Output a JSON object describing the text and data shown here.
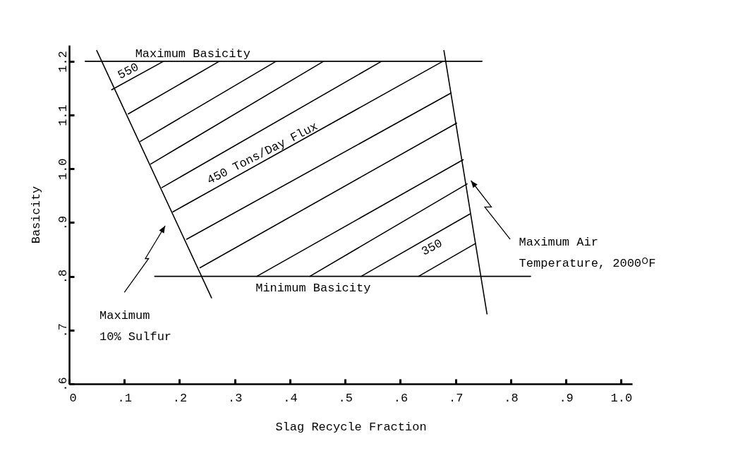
{
  "chart_data": {
    "type": "line",
    "xlabel": "Slag Recycle Fraction",
    "ylabel": "Basicity",
    "xlim": [
      0,
      1.02
    ],
    "ylim": [
      0.6,
      1.23
    ],
    "xticks": [
      0,
      {
        "value": 0.1,
        "label": ".1"
      },
      {
        "value": 0.2,
        "label": ".2"
      },
      {
        "value": 0.3,
        "label": ".3"
      },
      {
        "value": 0.4,
        "label": ".4"
      },
      {
        "value": 0.5,
        "label": ".5"
      },
      {
        "value": 0.6,
        "label": ".6"
      },
      {
        "value": 0.7,
        "label": ".7"
      },
      {
        "value": 0.8,
        "label": ".8"
      },
      {
        "value": 0.9,
        "label": ".9"
      },
      {
        "value": 1,
        "label": "1.0"
      }
    ],
    "yticks": [
      {
        "value": 0.6,
        "label": ".6"
      },
      {
        "value": 0.7,
        "label": ".7"
      },
      {
        "value": 0.8,
        "label": ".8"
      },
      {
        "value": 0.9,
        "label": ".9"
      },
      {
        "value": 1,
        "label": "1.0"
      },
      1.1,
      1.2
    ],
    "series": [
      {
        "color": "#000000",
        "x": [
          0.029,
          0.748
        ],
        "values": [
          1.2,
          1.2
        ]
      },
      {
        "color": "#000000",
        "x": [
          0.155,
          0.836
        ],
        "values": [
          0.8,
          0.8
        ]
      },
      {
        "color": "#000000",
        "x": [
          0.05,
          0.258
        ],
        "values": [
          1.22,
          0.76
        ]
      },
      {
        "color": "#000000",
        "x": [
          0.679,
          0.757
        ],
        "values": [
          1.22,
          0.73
        ]
      },
      {
        "color": "#000000",
        "x": [
          0.077,
          0.171
        ],
        "values": [
          1.147,
          1.2
        ]
      },
      {
        "color": "#000000",
        "x": [
          0.107,
          0.272
        ],
        "values": [
          1.102,
          1.2
        ]
      },
      {
        "color": "#000000",
        "x": [
          0.129,
          0.375
        ],
        "values": [
          1.051,
          1.2
        ]
      },
      {
        "color": "#000000",
        "x": [
          0.148,
          0.461
        ],
        "values": [
          1.009,
          1.2
        ]
      },
      {
        "color": "#000000",
        "x": [
          0.168,
          0.566
        ],
        "values": [
          0.965,
          1.2
        ]
      },
      {
        "color": "#000000",
        "x": [
          0.188,
          0.677
        ],
        "values": [
          0.92,
          1.2
        ]
      },
      {
        "color": "#000000",
        "x": [
          0.213,
          0.692
        ],
        "values": [
          0.869,
          1.141
        ]
      },
      {
        "color": "#000000",
        "x": [
          0.237,
          0.702
        ],
        "values": [
          0.816,
          1.085
        ]
      },
      {
        "color": "#000000",
        "x": [
          0.34,
          0.714
        ],
        "values": [
          0.8,
          1.017
        ]
      },
      {
        "color": "#000000",
        "x": [
          0.436,
          0.721
        ],
        "values": [
          0.8,
          0.972
        ]
      },
      {
        "color": "#000000",
        "x": [
          0.529,
          0.726
        ],
        "values": [
          0.8,
          0.916
        ]
      },
      {
        "color": "#000000",
        "x": [
          0.633,
          0.736
        ],
        "values": [
          0.8,
          0.861
        ]
      }
    ],
    "annotations": [
      "Maximum Basicity",
      "Minimum Basicity",
      "550",
      "450 Tons/Day Flux",
      "350",
      "Maximum\n10% Sulfur",
      "Maximum Air\nTemperature, 2000ᴼF"
    ]
  }
}
